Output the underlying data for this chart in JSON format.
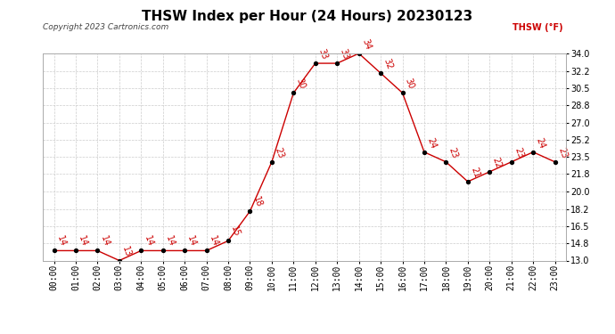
{
  "title": "THSW Index per Hour (24 Hours) 20230123",
  "copyright": "Copyright 2023 Cartronics.com",
  "legend_label": "THSW (°F)",
  "hours": [
    "00:00",
    "01:00",
    "02:00",
    "03:00",
    "04:00",
    "05:00",
    "06:00",
    "07:00",
    "08:00",
    "09:00",
    "10:00",
    "11:00",
    "12:00",
    "13:00",
    "14:00",
    "15:00",
    "16:00",
    "17:00",
    "18:00",
    "19:00",
    "20:00",
    "21:00",
    "22:00",
    "23:00"
  ],
  "values": [
    14,
    14,
    14,
    13,
    14,
    14,
    14,
    14,
    15,
    18,
    23,
    30,
    33,
    33,
    34,
    32,
    30,
    24,
    23,
    21,
    22,
    23,
    24,
    23
  ],
  "ylim": [
    13.0,
    34.0
  ],
  "yticks": [
    13.0,
    14.8,
    16.5,
    18.2,
    20.0,
    21.8,
    23.5,
    25.2,
    27.0,
    28.8,
    30.5,
    32.2,
    34.0
  ],
  "line_color": "#cc0000",
  "marker_color": "#000000",
  "grid_color": "#cccccc",
  "bg_color": "#ffffff",
  "title_fontsize": 11,
  "copyright_fontsize": 6.5,
  "label_fontsize": 7,
  "annotation_fontsize": 7
}
